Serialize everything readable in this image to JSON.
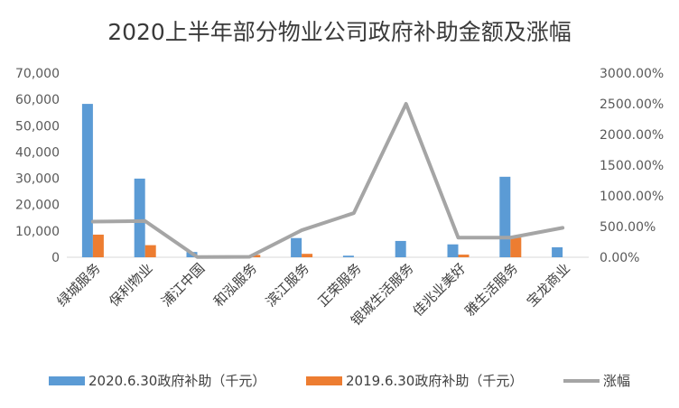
{
  "chart_data": {
    "type": "bar+line",
    "title": "2020上半年部分物业公司政府补助金额及涨幅",
    "categories": [
      "绿城服务",
      "保利物业",
      "浦江中国",
      "和泓服务",
      "滨江服务",
      "正荣服务",
      "银城生活服务",
      "佳兆业美好",
      "雅生活服务",
      "宝龙商业"
    ],
    "series": [
      {
        "name": "2020.6.30政府补助（千元）",
        "type": "bar",
        "axis": "left",
        "color": "#5b9bd5",
        "values": [
          58300,
          29900,
          2000,
          500,
          7300,
          600,
          6200,
          4900,
          30600,
          3800
        ]
      },
      {
        "name": "2019.6.30政府补助（千元）",
        "type": "bar",
        "axis": "left",
        "color": "#ed7d31",
        "values": [
          8600,
          4600,
          0,
          900,
          1300,
          0,
          0,
          1000,
          7500,
          0
        ]
      },
      {
        "name": "涨幅",
        "type": "line",
        "axis": "right",
        "color": "#a5a5a5",
        "values": [
          5.8,
          5.9,
          0.04,
          0.07,
          4.4,
          7.2,
          25.0,
          3.2,
          3.2,
          4.8
        ]
      }
    ],
    "y_left": {
      "range": [
        0,
        70000
      ],
      "ticks": [
        0,
        10000,
        20000,
        30000,
        40000,
        50000,
        60000,
        70000
      ],
      "tick_labels": [
        "0",
        "10,000",
        "20,000",
        "30,000",
        "40,000",
        "50,000",
        "60,000",
        "70,000"
      ]
    },
    "y_right": {
      "range": [
        0,
        30
      ],
      "ticks": [
        0,
        5,
        10,
        15,
        20,
        25,
        30
      ],
      "tick_labels": [
        "0.00%",
        "500.00%",
        "1000.00%",
        "1500.00%",
        "2000.00%",
        "2500.00%",
        "3000.00%"
      ]
    },
    "grid": false,
    "legend_position": "bottom"
  }
}
